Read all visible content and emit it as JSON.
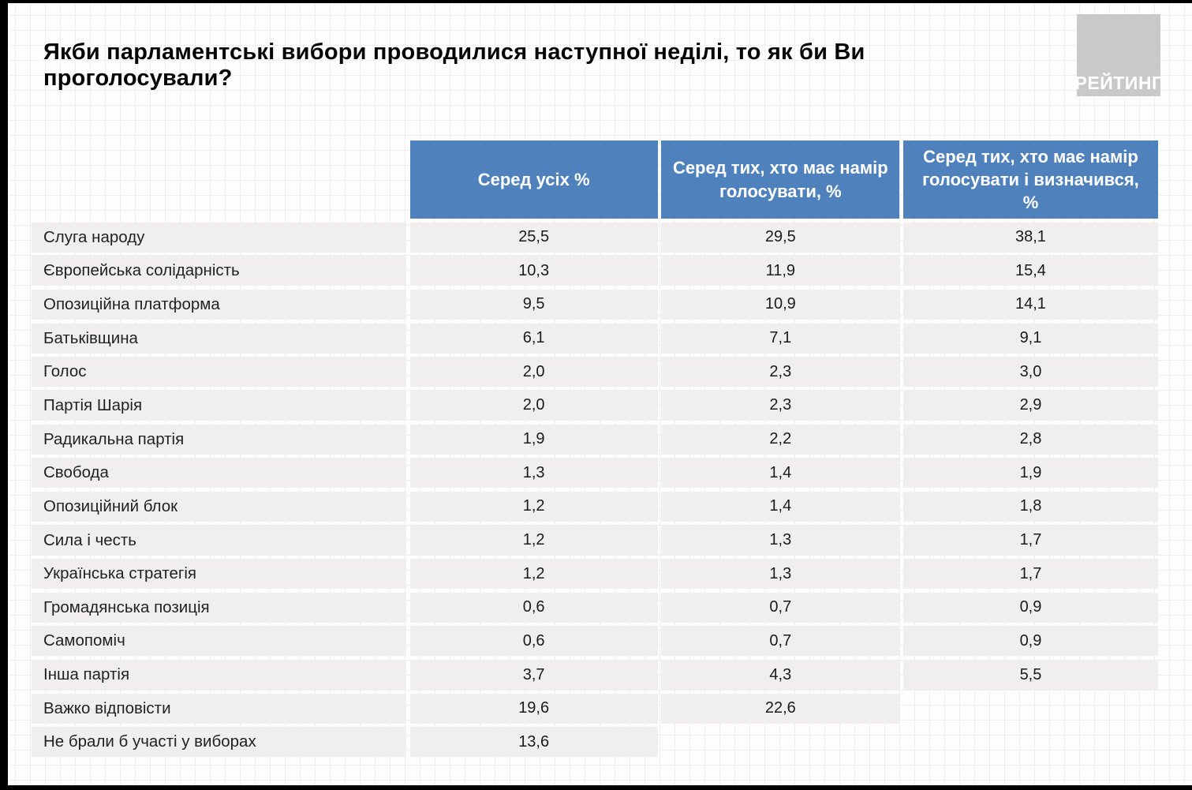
{
  "page": {
    "title": "Якби парламентські вибори проводилися наступної неділі, то як би Ви проголосували?",
    "logo_text": "РЕЙТИНГ"
  },
  "colors": {
    "header_bg": "#4f81bd",
    "header_text": "#ffffff",
    "row_bg": "#f0efee",
    "logo_bg": "#c9c9c9",
    "logo_text": "#ffffff",
    "edge": "#000000"
  },
  "chart_data": {
    "type": "table",
    "title": "Якби парламентські вибори проводилися наступної неділі, то як би Ви проголосували?",
    "columns": [
      "Серед усіх %",
      "Серед тих, хто має намір голосувати, %",
      "Серед тих, хто має намір голосувати і визначився, %"
    ],
    "rows": [
      {
        "label": "Слуга народу",
        "values": [
          "25,5",
          "29,5",
          "38,1"
        ]
      },
      {
        "label": "Європейська солідарність",
        "values": [
          "10,3",
          "11,9",
          "15,4"
        ]
      },
      {
        "label": "Опозиційна платформа",
        "values": [
          "9,5",
          "10,9",
          "14,1"
        ]
      },
      {
        "label": "Батьківщина",
        "values": [
          "6,1",
          "7,1",
          "9,1"
        ]
      },
      {
        "label": "Голос",
        "values": [
          "2,0",
          "2,3",
          "3,0"
        ]
      },
      {
        "label": "Партія Шарія",
        "values": [
          "2,0",
          "2,3",
          "2,9"
        ]
      },
      {
        "label": "Радикальна партія",
        "values": [
          "1,9",
          "2,2",
          "2,8"
        ]
      },
      {
        "label": "Свобода",
        "values": [
          "1,3",
          "1,4",
          "1,9"
        ]
      },
      {
        "label": "Опозиційний блок",
        "values": [
          "1,2",
          "1,4",
          "1,8"
        ]
      },
      {
        "label": "Сила і честь",
        "values": [
          "1,2",
          "1,3",
          "1,7"
        ]
      },
      {
        "label": "Українська стратегія",
        "values": [
          "1,2",
          "1,3",
          "1,7"
        ]
      },
      {
        "label": "Громадянська позиція",
        "values": [
          "0,6",
          "0,7",
          "0,9"
        ]
      },
      {
        "label": "Самопоміч",
        "values": [
          "0,6",
          "0,7",
          "0,9"
        ]
      },
      {
        "label": "Інша партія",
        "values": [
          "3,7",
          "4,3",
          "5,5"
        ]
      },
      {
        "label": "Важко відповісти",
        "values": [
          "19,6",
          "22,6",
          null
        ]
      },
      {
        "label": "Не брали б участі у виборах",
        "values": [
          "13,6",
          null,
          null
        ]
      }
    ]
  }
}
